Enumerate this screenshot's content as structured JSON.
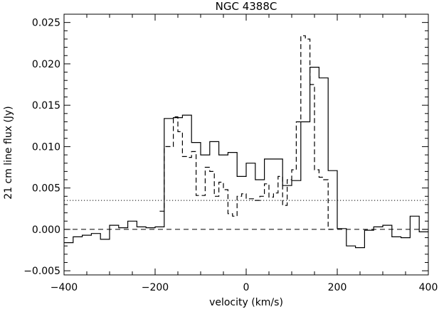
{
  "chart_data": {
    "type": "line",
    "title": "NGC 4388C",
    "xlabel": "velocity (km/s)",
    "ylabel": "21 cm line flux (Jy)",
    "xlim": [
      -400,
      400
    ],
    "ylim": [
      -0.0055,
      0.026
    ],
    "x_ticks": [
      -400,
      -200,
      0,
      200,
      400
    ],
    "x_tick_labels": [
      "−400",
      "−200",
      "0",
      "200",
      "400"
    ],
    "y_ticks": [
      -0.005,
      0.0,
      0.005,
      0.01,
      0.015,
      0.02,
      0.025
    ],
    "y_tick_labels": [
      "−0.005",
      "0.000",
      "0.005",
      "0.010",
      "0.015",
      "0.020",
      "0.025"
    ],
    "grid": false,
    "series": [
      {
        "style": "solid-step",
        "x": [
          -400,
          -380,
          -360,
          -340,
          -320,
          -300,
          -280,
          -260,
          -240,
          -220,
          -200,
          -180,
          -160,
          -140,
          -120,
          -100,
          -80,
          -60,
          -40,
          -20,
          0,
          20,
          40,
          60,
          80,
          100,
          120,
          140,
          160,
          180,
          200,
          220,
          240,
          260,
          280,
          300,
          320,
          340,
          360,
          380,
          400
        ],
        "y": [
          -0.0016,
          -0.0009,
          -0.0007,
          -0.0005,
          -0.0012,
          0.0005,
          0.0002,
          0.001,
          0.0003,
          0.0002,
          0.0003,
          0.0134,
          0.0135,
          0.0138,
          0.0105,
          0.009,
          0.0106,
          0.009,
          0.0093,
          0.0064,
          0.008,
          0.006,
          0.0085,
          0.0085,
          0.0053,
          0.0059,
          0.013,
          0.0196,
          0.0183,
          0.0071,
          0.0001,
          -0.002,
          -0.0022,
          -0.0001,
          0.0003,
          0.0005,
          -0.0009,
          -0.001,
          0.0016,
          -0.0003,
          -0.0003
        ]
      },
      {
        "style": "dashed-step",
        "x": [
          -190,
          -180,
          -170,
          -160,
          -150,
          -140,
          -130,
          -120,
          -110,
          -100,
          -90,
          -80,
          -70,
          -60,
          -50,
          -40,
          -30,
          -20,
          -10,
          0,
          10,
          20,
          30,
          40,
          50,
          60,
          70,
          80,
          90,
          100,
          110,
          120,
          130,
          140,
          150,
          160,
          170,
          180,
          190
        ],
        "y": [
          0.0022,
          0.01,
          0.01,
          0.0136,
          0.0118,
          0.0088,
          0.0087,
          0.0094,
          0.0041,
          0.0041,
          0.0075,
          0.007,
          0.004,
          0.0057,
          0.0048,
          0.0019,
          0.0016,
          0.004,
          0.0043,
          0.0037,
          0.0037,
          0.0035,
          0.004,
          0.0055,
          0.0039,
          0.0044,
          0.0064,
          0.0029,
          0.006,
          0.0072,
          0.013,
          0.0234,
          0.023,
          0.0175,
          0.0072,
          0.0063,
          0.006,
          0.0,
          0.0
        ]
      }
    ],
    "reference_lines": [
      {
        "style": "dashed",
        "y": 0.0
      },
      {
        "style": "dotted",
        "y": 0.0035
      }
    ]
  }
}
